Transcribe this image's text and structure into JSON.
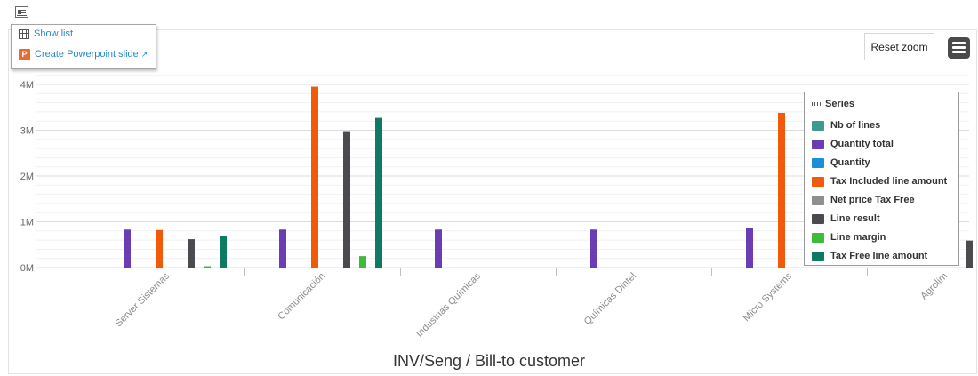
{
  "toolbar": {
    "top_icon": "id-card-icon",
    "popup_items": [
      {
        "label": "Show list",
        "icon": "table-icon"
      },
      {
        "label": "Create Powerpoint slide",
        "icon": "powerpoint-icon"
      }
    ],
    "reset_zoom": "Reset zoom",
    "menu_icon": "hamburger-menu-icon"
  },
  "legend": {
    "title": "Series",
    "items": [
      {
        "label": "Nb of lines",
        "color": "#3d9a8c"
      },
      {
        "label": "Quantity total",
        "color": "#6a3db5"
      },
      {
        "label": "Quantity",
        "color": "#1a8fd8"
      },
      {
        "label": "Tax Included line amount",
        "color": "#f05a0a"
      },
      {
        "label": "Net price Tax Free",
        "color": "#8f8f8f"
      },
      {
        "label": "Line result",
        "color": "#4b4b4f"
      },
      {
        "label": "Line margin",
        "color": "#3dbb39"
      },
      {
        "label": "Tax Free line amount",
        "color": "#0f7a63"
      }
    ]
  },
  "chart_data": {
    "type": "bar",
    "xlabel": "INV/Seng / Bill-to customer",
    "ylabel": "",
    "ylim": [
      0,
      4000000
    ],
    "yticks": [
      0,
      1000000,
      2000000,
      3000000,
      4000000
    ],
    "ytick_labels": [
      "0M",
      "1M",
      "2M",
      "3M",
      "4M"
    ],
    "grid": true,
    "legend_position": "right",
    "categories": [
      "Server Sistemas",
      "Comunicación",
      "Industrias Químicas",
      "Químicas Dintel",
      "Micro Systems",
      "Agrolim"
    ],
    "series": [
      {
        "name": "Nb of lines",
        "values": [
          0,
          0,
          0,
          0,
          0,
          0
        ]
      },
      {
        "name": "Quantity total",
        "values": [
          830000,
          830000,
          830000,
          830000,
          870000,
          0
        ]
      },
      {
        "name": "Quantity",
        "values": [
          0,
          0,
          0,
          0,
          0,
          0
        ]
      },
      {
        "name": "Tax Included line amount",
        "values": [
          820000,
          3950000,
          0,
          0,
          3380000,
          0
        ]
      },
      {
        "name": "Net price Tax Free",
        "values": [
          0,
          0,
          0,
          0,
          0,
          0
        ]
      },
      {
        "name": "Line result",
        "values": [
          620000,
          2980000,
          0,
          0,
          0,
          590000
        ]
      },
      {
        "name": "Line margin",
        "values": [
          30000,
          250000,
          0,
          0,
          0,
          0
        ]
      },
      {
        "name": "Tax Free line amount",
        "values": [
          690000,
          3270000,
          0,
          0,
          0,
          0
        ]
      }
    ]
  }
}
